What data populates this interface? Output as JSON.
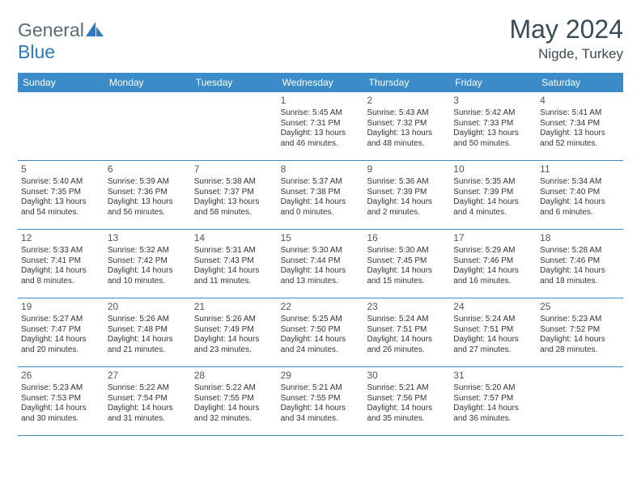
{
  "brand": {
    "part1": "General",
    "part2": "Blue"
  },
  "title": "May 2024",
  "location": "Nigde, Turkey",
  "colors": {
    "header_bg": "#3b8bc9",
    "header_text": "#ffffff",
    "title_text": "#3a4a56",
    "brand_gray": "#5a6b78",
    "brand_blue": "#2a7bc4",
    "rule": "#3b8bc9",
    "body_text": "#333333"
  },
  "fonts": {
    "title_size": 32,
    "location_size": 17,
    "weekday_size": 12,
    "daynum_size": 12,
    "body_size": 10
  },
  "weekdays": [
    "Sunday",
    "Monday",
    "Tuesday",
    "Wednesday",
    "Thursday",
    "Friday",
    "Saturday"
  ],
  "weeks": [
    [
      null,
      null,
      null,
      {
        "n": "1",
        "sr": "Sunrise: 5:45 AM",
        "ss": "Sunset: 7:31 PM",
        "d1": "Daylight: 13 hours",
        "d2": "and 46 minutes."
      },
      {
        "n": "2",
        "sr": "Sunrise: 5:43 AM",
        "ss": "Sunset: 7:32 PM",
        "d1": "Daylight: 13 hours",
        "d2": "and 48 minutes."
      },
      {
        "n": "3",
        "sr": "Sunrise: 5:42 AM",
        "ss": "Sunset: 7:33 PM",
        "d1": "Daylight: 13 hours",
        "d2": "and 50 minutes."
      },
      {
        "n": "4",
        "sr": "Sunrise: 5:41 AM",
        "ss": "Sunset: 7:34 PM",
        "d1": "Daylight: 13 hours",
        "d2": "and 52 minutes."
      }
    ],
    [
      {
        "n": "5",
        "sr": "Sunrise: 5:40 AM",
        "ss": "Sunset: 7:35 PM",
        "d1": "Daylight: 13 hours",
        "d2": "and 54 minutes."
      },
      {
        "n": "6",
        "sr": "Sunrise: 5:39 AM",
        "ss": "Sunset: 7:36 PM",
        "d1": "Daylight: 13 hours",
        "d2": "and 56 minutes."
      },
      {
        "n": "7",
        "sr": "Sunrise: 5:38 AM",
        "ss": "Sunset: 7:37 PM",
        "d1": "Daylight: 13 hours",
        "d2": "and 58 minutes."
      },
      {
        "n": "8",
        "sr": "Sunrise: 5:37 AM",
        "ss": "Sunset: 7:38 PM",
        "d1": "Daylight: 14 hours",
        "d2": "and 0 minutes."
      },
      {
        "n": "9",
        "sr": "Sunrise: 5:36 AM",
        "ss": "Sunset: 7:39 PM",
        "d1": "Daylight: 14 hours",
        "d2": "and 2 minutes."
      },
      {
        "n": "10",
        "sr": "Sunrise: 5:35 AM",
        "ss": "Sunset: 7:39 PM",
        "d1": "Daylight: 14 hours",
        "d2": "and 4 minutes."
      },
      {
        "n": "11",
        "sr": "Sunrise: 5:34 AM",
        "ss": "Sunset: 7:40 PM",
        "d1": "Daylight: 14 hours",
        "d2": "and 6 minutes."
      }
    ],
    [
      {
        "n": "12",
        "sr": "Sunrise: 5:33 AM",
        "ss": "Sunset: 7:41 PM",
        "d1": "Daylight: 14 hours",
        "d2": "and 8 minutes."
      },
      {
        "n": "13",
        "sr": "Sunrise: 5:32 AM",
        "ss": "Sunset: 7:42 PM",
        "d1": "Daylight: 14 hours",
        "d2": "and 10 minutes."
      },
      {
        "n": "14",
        "sr": "Sunrise: 5:31 AM",
        "ss": "Sunset: 7:43 PM",
        "d1": "Daylight: 14 hours",
        "d2": "and 11 minutes."
      },
      {
        "n": "15",
        "sr": "Sunrise: 5:30 AM",
        "ss": "Sunset: 7:44 PM",
        "d1": "Daylight: 14 hours",
        "d2": "and 13 minutes."
      },
      {
        "n": "16",
        "sr": "Sunrise: 5:30 AM",
        "ss": "Sunset: 7:45 PM",
        "d1": "Daylight: 14 hours",
        "d2": "and 15 minutes."
      },
      {
        "n": "17",
        "sr": "Sunrise: 5:29 AM",
        "ss": "Sunset: 7:46 PM",
        "d1": "Daylight: 14 hours",
        "d2": "and 16 minutes."
      },
      {
        "n": "18",
        "sr": "Sunrise: 5:28 AM",
        "ss": "Sunset: 7:46 PM",
        "d1": "Daylight: 14 hours",
        "d2": "and 18 minutes."
      }
    ],
    [
      {
        "n": "19",
        "sr": "Sunrise: 5:27 AM",
        "ss": "Sunset: 7:47 PM",
        "d1": "Daylight: 14 hours",
        "d2": "and 20 minutes."
      },
      {
        "n": "20",
        "sr": "Sunrise: 5:26 AM",
        "ss": "Sunset: 7:48 PM",
        "d1": "Daylight: 14 hours",
        "d2": "and 21 minutes."
      },
      {
        "n": "21",
        "sr": "Sunrise: 5:26 AM",
        "ss": "Sunset: 7:49 PM",
        "d1": "Daylight: 14 hours",
        "d2": "and 23 minutes."
      },
      {
        "n": "22",
        "sr": "Sunrise: 5:25 AM",
        "ss": "Sunset: 7:50 PM",
        "d1": "Daylight: 14 hours",
        "d2": "and 24 minutes."
      },
      {
        "n": "23",
        "sr": "Sunrise: 5:24 AM",
        "ss": "Sunset: 7:51 PM",
        "d1": "Daylight: 14 hours",
        "d2": "and 26 minutes."
      },
      {
        "n": "24",
        "sr": "Sunrise: 5:24 AM",
        "ss": "Sunset: 7:51 PM",
        "d1": "Daylight: 14 hours",
        "d2": "and 27 minutes."
      },
      {
        "n": "25",
        "sr": "Sunrise: 5:23 AM",
        "ss": "Sunset: 7:52 PM",
        "d1": "Daylight: 14 hours",
        "d2": "and 28 minutes."
      }
    ],
    [
      {
        "n": "26",
        "sr": "Sunrise: 5:23 AM",
        "ss": "Sunset: 7:53 PM",
        "d1": "Daylight: 14 hours",
        "d2": "and 30 minutes."
      },
      {
        "n": "27",
        "sr": "Sunrise: 5:22 AM",
        "ss": "Sunset: 7:54 PM",
        "d1": "Daylight: 14 hours",
        "d2": "and 31 minutes."
      },
      {
        "n": "28",
        "sr": "Sunrise: 5:22 AM",
        "ss": "Sunset: 7:55 PM",
        "d1": "Daylight: 14 hours",
        "d2": "and 32 minutes."
      },
      {
        "n": "29",
        "sr": "Sunrise: 5:21 AM",
        "ss": "Sunset: 7:55 PM",
        "d1": "Daylight: 14 hours",
        "d2": "and 34 minutes."
      },
      {
        "n": "30",
        "sr": "Sunrise: 5:21 AM",
        "ss": "Sunset: 7:56 PM",
        "d1": "Daylight: 14 hours",
        "d2": "and 35 minutes."
      },
      {
        "n": "31",
        "sr": "Sunrise: 5:20 AM",
        "ss": "Sunset: 7:57 PM",
        "d1": "Daylight: 14 hours",
        "d2": "and 36 minutes."
      },
      null
    ]
  ]
}
